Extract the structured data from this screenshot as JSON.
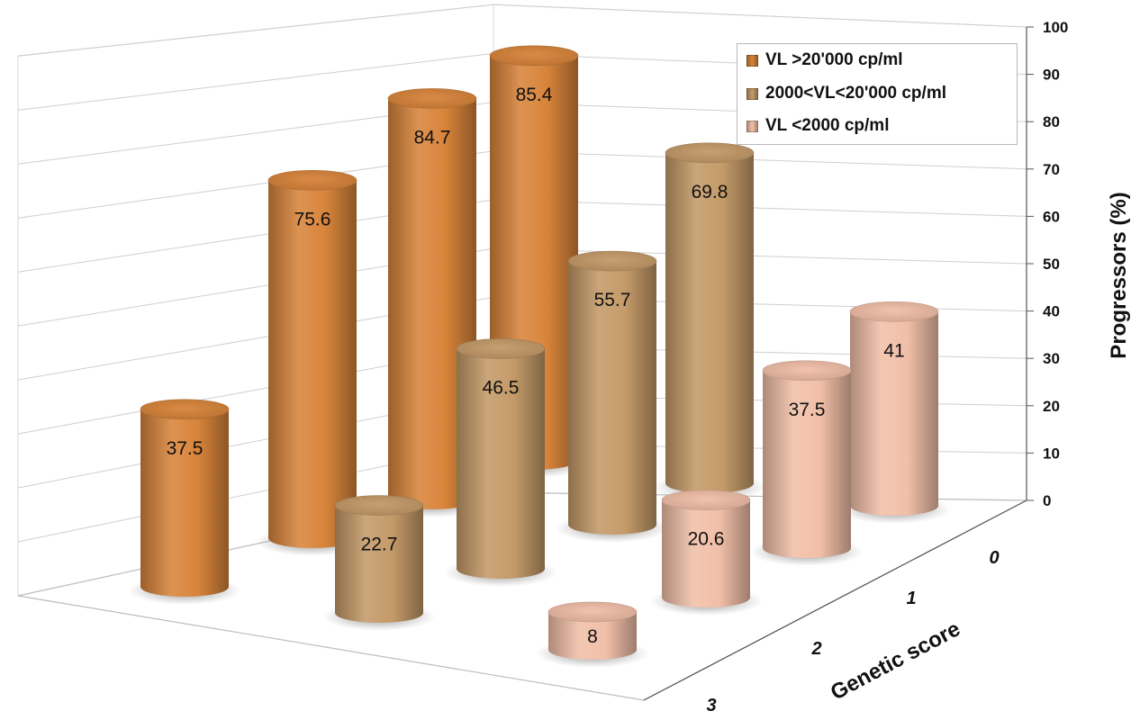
{
  "chart_data": {
    "type": "bar",
    "style": "3d-cylinder",
    "title": "",
    "zlabel": "Progressors (%)",
    "xlabel": "Genetic score",
    "zlim": [
      0,
      100
    ],
    "z_ticks": [
      "0",
      "10",
      "20",
      "30",
      "40",
      "50",
      "60",
      "70",
      "80",
      "90",
      "100"
    ],
    "categories": [
      "3",
      "2",
      "1",
      "0"
    ],
    "grid": true,
    "legend_position": "top-right",
    "series": [
      {
        "name": "VL >20'000 cp/ml",
        "color": "#d8843a",
        "values": [
          37.5,
          75.6,
          84.7,
          85.4
        ],
        "labels": [
          "37.5",
          "75.6",
          "84.7",
          "85.4"
        ]
      },
      {
        "name": "2000<VL<20'000 cp/ml",
        "color": "#c49a68",
        "values": [
          22.7,
          46.5,
          55.7,
          69.8
        ],
        "labels": [
          "22.7",
          "46.5",
          "55.7",
          "69.8"
        ]
      },
      {
        "name": "VL <2000 cp/ml",
        "color": "#f1bfa8",
        "values": [
          8,
          20.6,
          37.5,
          41
        ],
        "labels": [
          "8",
          "20.6",
          "37.5",
          "41"
        ]
      }
    ]
  }
}
